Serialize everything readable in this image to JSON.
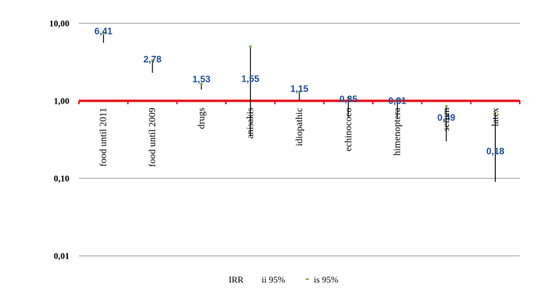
{
  "chart_data": {
    "type": "scatter",
    "title": "",
    "xlabel": "",
    "ylabel": "",
    "yscale": "log",
    "ylim": [
      0.01,
      10
    ],
    "ytick_labels": [
      "10,00",
      "1,00",
      "0,10",
      "0,01"
    ],
    "ytick_values": [
      10,
      1,
      0.1,
      0.01
    ],
    "grid": "horizontal",
    "reference_line": {
      "value": 1,
      "color": "#e8141b"
    },
    "categories": [
      "food until 2011",
      "food until 2009",
      "drugs",
      "anisakis",
      "idiopathic",
      "echinococo",
      "himenoptera",
      "serum",
      "latex"
    ],
    "series": [
      {
        "name": "IRR",
        "values": [
          6.41,
          2.78,
          1.53,
          1.55,
          1.15,
          0.85,
          0.81,
          0.49,
          0.18
        ],
        "labels": [
          "6,41",
          "2,78",
          "1,53",
          "1,55",
          "1,15",
          "0,85",
          "0,81",
          "0,49",
          "0,18"
        ],
        "color": "#1f4e9a"
      },
      {
        "name": "ii 95%",
        "values": [
          5.6,
          2.3,
          1.4,
          0.35,
          1.0,
          0.62,
          0.6,
          0.3,
          0.09
        ],
        "color": "#000000"
      },
      {
        "name": "is 95%",
        "values": [
          7.4,
          3.3,
          1.65,
          5.0,
          1.3,
          1.1,
          1.05,
          0.85,
          0.7
        ],
        "color": "#7cb342"
      }
    ],
    "legend": {
      "position": "bottom",
      "entries": [
        "IRR",
        "ii 95%",
        "is 95%"
      ]
    }
  }
}
